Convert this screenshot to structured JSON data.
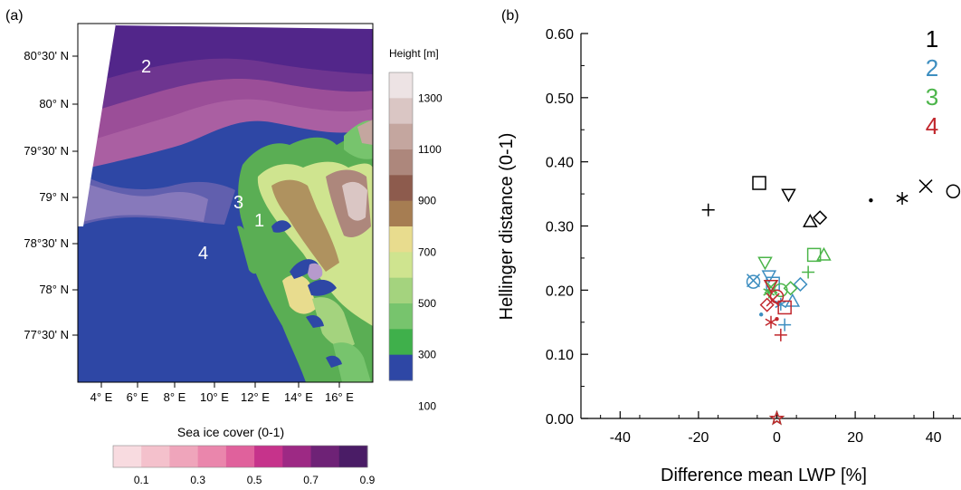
{
  "panel_a": {
    "label": "(a)",
    "lat_ticks": [
      "80°30' N",
      "80° N",
      "79°30' N",
      "79° N",
      "78°30' N",
      "78° N",
      "77°30' N"
    ],
    "lon_ticks": [
      "4° E",
      "6° E",
      "8° E",
      "10° E",
      "12° E",
      "14° E",
      "16° E"
    ],
    "region_labels": [
      "2",
      "3",
      "1",
      "4"
    ],
    "height_bar": {
      "title": "Height [m]",
      "labels": [
        "1300",
        "1100",
        "900",
        "700",
        "500",
        "300",
        "100"
      ],
      "colors": [
        "#ede3e4",
        "#dac6c4",
        "#c4a69f",
        "#ad877c",
        "#8d5b4d",
        "#a67d52",
        "#e8dc8e",
        "#cfe48f",
        "#a4d37e",
        "#77c46d",
        "#3fb04b",
        "#2e47a5"
      ]
    },
    "sea_ice_bar": {
      "title": "Sea ice cover (0-1)",
      "labels": [
        "0.1",
        "0.3",
        "0.5",
        "0.7",
        "0.9"
      ],
      "colors": [
        "#f8dbe0",
        "#f4c1cc",
        "#efa5bb",
        "#ea86ac",
        "#e0619c",
        "#c6338b",
        "#9d2984",
        "#6e2276",
        "#4a1c66"
      ]
    }
  },
  "chart_data": {
    "type": "scatter",
    "panel_label": "(b)",
    "xlabel": "Difference mean LWP [%]",
    "ylabel": "Hellinger distance (0-1)",
    "xlim": [
      -50,
      47
    ],
    "ylim": [
      0,
      0.6
    ],
    "x_ticks": [
      -40,
      -20,
      0,
      20,
      40
    ],
    "y_ticks": [
      "0.00",
      "0.10",
      "0.20",
      "0.30",
      "0.40",
      "0.50",
      "0.60"
    ],
    "legend_position": "top-right",
    "series": [
      {
        "name": "1",
        "color": "#000000",
        "points": [
          {
            "marker": "plus",
            "x": -17.5,
            "y": 0.325
          },
          {
            "marker": "square",
            "x": -4.5,
            "y": 0.367
          },
          {
            "marker": "triangle-down",
            "x": 3,
            "y": 0.349
          },
          {
            "marker": "triangle",
            "x": 8.5,
            "y": 0.307
          },
          {
            "marker": "diamond",
            "x": 11,
            "y": 0.313
          },
          {
            "marker": "dot",
            "x": 24,
            "y": 0.34
          },
          {
            "marker": "asterisk",
            "x": 32,
            "y": 0.343
          },
          {
            "marker": "cross",
            "x": 38,
            "y": 0.362
          },
          {
            "marker": "circle",
            "x": 45,
            "y": 0.354
          }
        ]
      },
      {
        "name": "2",
        "color": "#3d8ec0",
        "points": [
          {
            "marker": "circle",
            "x": -6,
            "y": 0.213
          },
          {
            "marker": "cross",
            "x": -6,
            "y": 0.215
          },
          {
            "marker": "triangle-down",
            "x": -2,
            "y": 0.222
          },
          {
            "marker": "square",
            "x": -1,
            "y": 0.21
          },
          {
            "marker": "diamond",
            "x": 6,
            "y": 0.209
          },
          {
            "marker": "triangle",
            "x": 4,
            "y": 0.183
          },
          {
            "marker": "asterisk",
            "x": 1,
            "y": 0.178
          },
          {
            "marker": "dot",
            "x": -4,
            "y": 0.162
          },
          {
            "marker": "plus",
            "x": 2,
            "y": 0.146
          },
          {
            "marker": "star",
            "x": 0,
            "y": 0
          }
        ]
      },
      {
        "name": "3",
        "color": "#4cb54a",
        "points": [
          {
            "marker": "triangle-down",
            "x": -3,
            "y": 0.243
          },
          {
            "marker": "square",
            "x": 9.5,
            "y": 0.255
          },
          {
            "marker": "triangle",
            "x": 12,
            "y": 0.255
          },
          {
            "marker": "plus",
            "x": 8,
            "y": 0.228
          },
          {
            "marker": "diamond",
            "x": 3.5,
            "y": 0.203
          },
          {
            "marker": "circle",
            "x": 1,
            "y": 0.2
          },
          {
            "marker": "cross",
            "x": -1.5,
            "y": 0.205
          },
          {
            "marker": "asterisk",
            "x": -2,
            "y": 0.197
          },
          {
            "marker": "star",
            "x": 0,
            "y": 0
          }
        ]
      },
      {
        "name": "4",
        "color": "#c1272d",
        "points": [
          {
            "marker": "triangle-down",
            "x": -1.5,
            "y": 0.207
          },
          {
            "marker": "circle",
            "x": 0,
            "y": 0.19
          },
          {
            "marker": "square",
            "x": 2,
            "y": 0.173
          },
          {
            "marker": "diamond",
            "x": -2.5,
            "y": 0.177
          },
          {
            "marker": "cross",
            "x": -1,
            "y": 0.185
          },
          {
            "marker": "asterisk",
            "x": -1.5,
            "y": 0.15
          },
          {
            "marker": "dot",
            "x": 0,
            "y": 0.155
          },
          {
            "marker": "plus",
            "x": 1,
            "y": 0.13
          },
          {
            "marker": "star",
            "x": 0,
            "y": 0
          }
        ]
      }
    ]
  }
}
